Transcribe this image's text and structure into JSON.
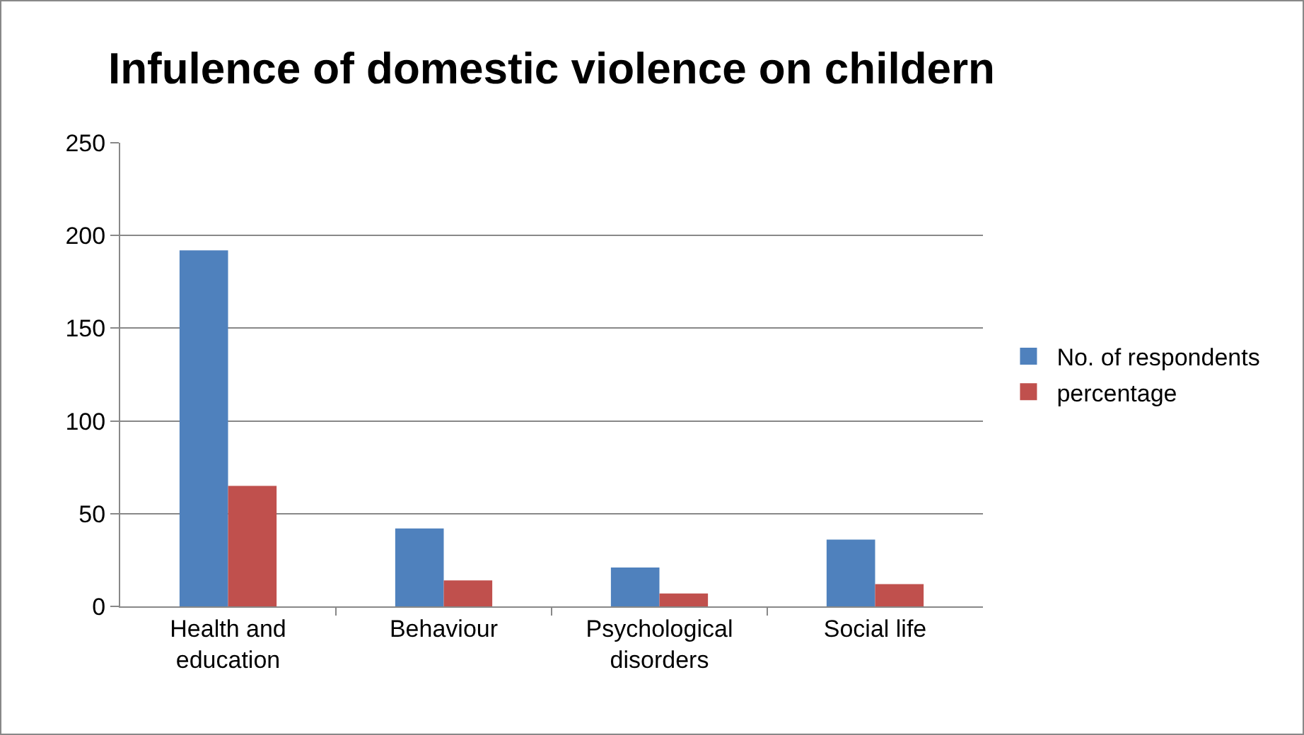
{
  "chart_data": {
    "type": "bar",
    "title": "Infulence of domestic violence on childern",
    "categories": [
      "Health and education",
      "Behaviour",
      "Psychological disorders",
      "Social life"
    ],
    "series": [
      {
        "name": "No. of respondents",
        "color": "#4f81bd",
        "values": [
          192,
          42,
          21,
          36
        ]
      },
      {
        "name": "percentage",
        "color": "#c0504d",
        "values": [
          65,
          14,
          7,
          12
        ]
      }
    ],
    "ylim": [
      0,
      250
    ],
    "yticks": [
      0,
      50,
      100,
      150,
      200,
      250
    ],
    "grid": "y",
    "legend": "right"
  }
}
